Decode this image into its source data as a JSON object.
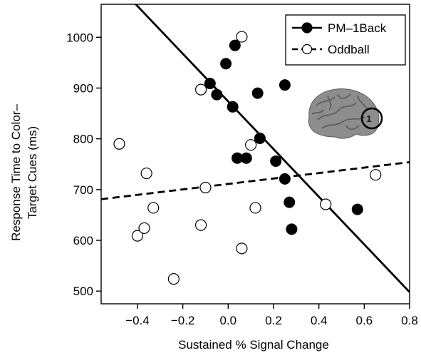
{
  "chart_data": {
    "type": "scatter",
    "xlabel": "Sustained % Signal Change",
    "ylabel_lines": [
      "Response Time to Color–",
      "Target Cues (ms)"
    ],
    "xlim": [
      -0.56,
      0.8
    ],
    "ylim": [
      475,
      1065
    ],
    "xticks": [
      -0.4,
      -0.2,
      0.0,
      0.2,
      0.4,
      0.6,
      0.8
    ],
    "xtick_labels": [
      "−0.4",
      "−0.2",
      "0.0",
      "0.2",
      "0.4",
      "0.6",
      "0.8"
    ],
    "yticks": [
      500,
      600,
      700,
      800,
      900,
      1000
    ],
    "ytick_labels": [
      "500",
      "600",
      "700",
      "800",
      "900",
      "1000"
    ],
    "grid": false,
    "legend_position": "top-right",
    "series": [
      {
        "name": "PM–1Back",
        "marker": "filled-circle",
        "line": "solid",
        "color": "#000000",
        "x": [
          -0.08,
          -0.05,
          -0.01,
          0.02,
          0.03,
          0.13,
          0.25,
          0.04,
          0.08,
          0.14,
          0.21,
          0.25,
          0.27,
          0.28,
          0.57
        ],
        "y": [
          909,
          887,
          948,
          863,
          984,
          890,
          906,
          762,
          762,
          801,
          756,
          721,
          675,
          622,
          661
        ],
        "fit": {
          "x": [
            -0.45,
            0.8
          ],
          "y": [
            1085,
            498
          ]
        }
      },
      {
        "name": "Oddball",
        "marker": "open-circle",
        "line": "dashed",
        "color": "#000000",
        "x": [
          -0.48,
          -0.36,
          -0.33,
          -0.1,
          0.06,
          0.1,
          0.12,
          0.43,
          0.65,
          -0.4,
          -0.37,
          -0.12,
          0.06,
          -0.24,
          -0.12
        ],
        "y": [
          790,
          732,
          664,
          704,
          1001,
          788,
          664,
          671,
          729,
          609,
          624,
          630,
          584,
          524,
          897
        ],
        "fit": {
          "x": [
            -0.56,
            0.8
          ],
          "y": [
            681,
            754
          ]
        }
      }
    ],
    "inset": {
      "type": "brain-image",
      "label": "1"
    }
  }
}
